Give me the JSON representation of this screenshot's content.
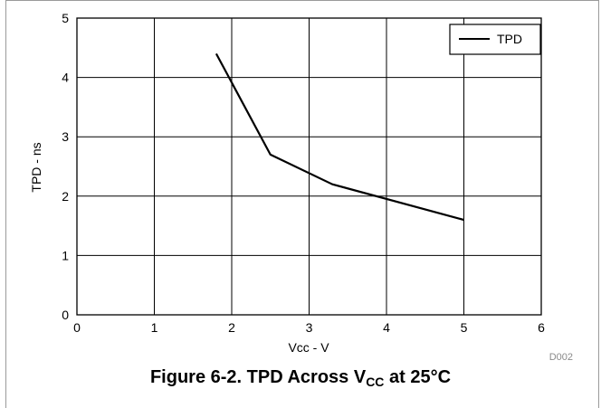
{
  "chart_data": {
    "type": "line",
    "title": "",
    "xlabel": "Vcc - V",
    "ylabel": "TPD - ns",
    "xlim": [
      0,
      6
    ],
    "ylim": [
      0,
      5
    ],
    "x_ticks": [
      "0",
      "1",
      "2",
      "3",
      "4",
      "5",
      "6"
    ],
    "y_ticks": [
      "0",
      "1",
      "2",
      "3",
      "4",
      "5"
    ],
    "grid": true,
    "legend_position": "top-right",
    "series": [
      {
        "name": "TPD",
        "x": [
          1.8,
          2.5,
          3.3,
          5.0
        ],
        "y": [
          4.4,
          2.7,
          2.2,
          1.6
        ]
      }
    ]
  },
  "figure_code": "D002",
  "caption": {
    "prefix": "Figure 6-2. TPD Across V",
    "subscript": "CC",
    "suffix": " at 25°C"
  },
  "colors": {
    "line": "#000000",
    "grid": "#000000"
  }
}
